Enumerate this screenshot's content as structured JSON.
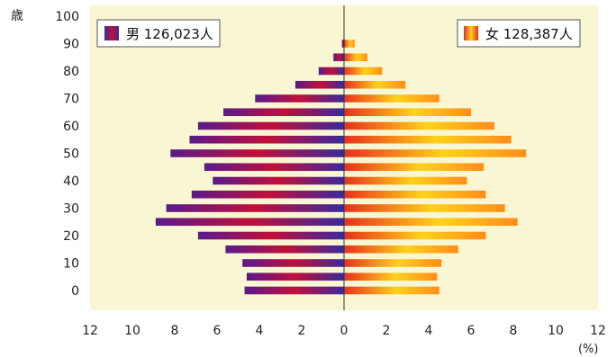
{
  "chart_data": {
    "type": "bar",
    "orientation": "horizontal-population-pyramid",
    "y_unit_label": "歳",
    "x_unit_label": "(%)",
    "y_ticks": [
      "0",
      "10",
      "20",
      "30",
      "40",
      "50",
      "60",
      "70",
      "80",
      "90",
      "100"
    ],
    "x_ticks_left": [
      "12",
      "10",
      "8",
      "6",
      "4",
      "2"
    ],
    "x_tick_zero": "0",
    "x_ticks_right": [
      "2",
      "4",
      "6",
      "8",
      "10",
      "12"
    ],
    "xlim": [
      -12,
      12
    ],
    "ylim": [
      -5,
      100
    ],
    "age_groups": [
      "0-4",
      "5-9",
      "10-14",
      "15-19",
      "20-24",
      "25-29",
      "30-34",
      "35-39",
      "40-44",
      "45-49",
      "50-54",
      "55-59",
      "60-64",
      "65-69",
      "70-74",
      "75-79",
      "80-84",
      "85-89",
      "90+"
    ],
    "series": [
      {
        "name": "男 126,023人",
        "color": "#c0103a",
        "values": [
          4.7,
          4.6,
          4.8,
          5.6,
          6.9,
          8.9,
          8.4,
          7.2,
          6.2,
          6.6,
          8.2,
          7.3,
          6.9,
          5.7,
          4.2,
          2.3,
          1.2,
          0.5,
          0.1
        ]
      },
      {
        "name": "女 128,387人",
        "color": "#f5b800",
        "values": [
          4.5,
          4.4,
          4.6,
          5.4,
          6.7,
          8.2,
          7.6,
          6.7,
          5.8,
          6.6,
          8.6,
          7.9,
          7.1,
          6.0,
          4.5,
          2.9,
          1.8,
          1.1,
          0.5
        ]
      }
    ],
    "legend_position": "top-left / top-right",
    "grid": false
  }
}
